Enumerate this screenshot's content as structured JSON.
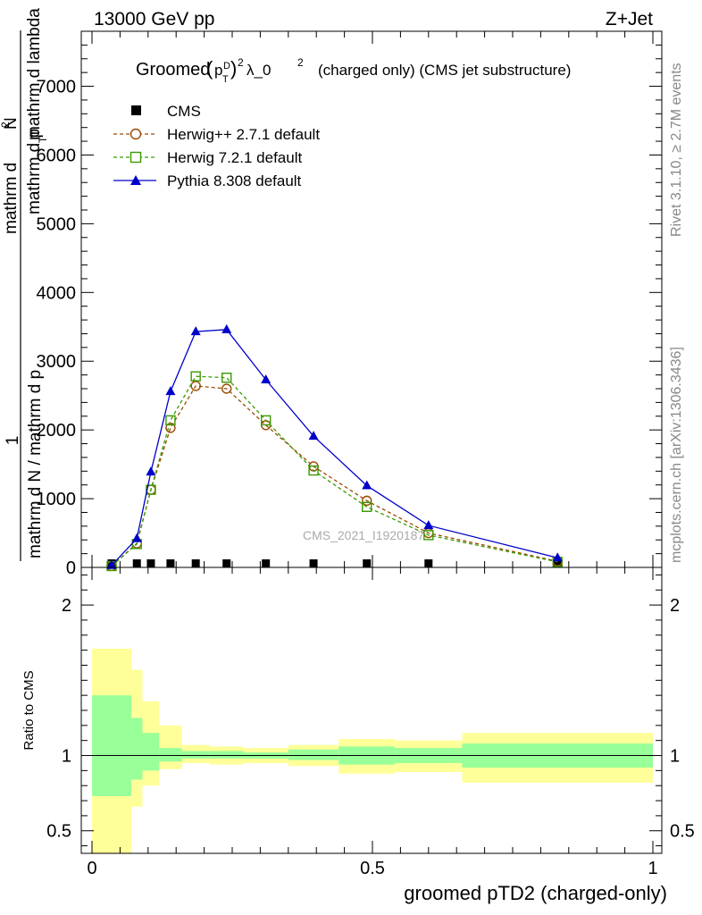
{
  "header": {
    "energy_label": "13000 GeV pp",
    "process_label": "Z+Jet"
  },
  "side_labels": {
    "rivet": "Rivet 3.1.10, ≥ 2.7M events",
    "mcplots": "mcplots.cern.ch [arXiv:1306.3436]"
  },
  "watermark": "CMS_2021_I1920187",
  "chart_data": [
    {
      "type": "line",
      "title": "Groomed (p_T^D)^2 λ_0^2  (charged only) (CMS jet substructure)",
      "title_parts": {
        "prefix": "Groomed",
        "sub_p": "p",
        "sub_T": "T",
        "sup_D": "D",
        "sup_2": "2",
        "lambda": "λ_0",
        "lambda_sup": "2",
        "suffix": "(charged only) (CMS jet substructure)"
      },
      "ylabel_numerator": "mathrm d²N",
      "ylabel_numerator_lines": [
        "mathrm d",
        "N",
        "2"
      ],
      "ylabel_denominator": "mathrm d N / mathrm d p_T mathrm d p_T mathrm d lambda",
      "ylabel_one": "1",
      "ylabel_num_text": "mathrm d",
      "ylabel_num_sup": "2",
      "ylabel_num_N": "N",
      "ylabel_num_line2": "mathrm d p",
      "ylabel_num_line2_sub": "T",
      "ylabel_num_line2_rest": "mathrm d lambda",
      "ylabel_den_a": "mathrm d N / mathrm d p",
      "ylabel_den_sub": "T",
      "xlim": [
        0,
        1
      ],
      "ylim": [
        0,
        7800
      ],
      "yticks": [
        {
          "value": 0,
          "label": "0"
        },
        {
          "value": 1000,
          "label": "1000"
        },
        {
          "value": 2000,
          "label": "2000"
        },
        {
          "value": 3000,
          "label": "3000"
        },
        {
          "value": 4000,
          "label": "4000"
        },
        {
          "value": 5000,
          "label": "5000"
        },
        {
          "value": 6000,
          "label": "6000"
        },
        {
          "value": 7000,
          "label": "7000"
        }
      ],
      "legend_position": "top-left",
      "series": [
        {
          "name": "CMS",
          "color": "#000000",
          "marker": "filled-square",
          "x": [
            0.035,
            0.08,
            0.105,
            0.14,
            0.185,
            0.24,
            0.31,
            0.395,
            0.49,
            0.6,
            0.83
          ],
          "y": [
            0,
            0,
            0,
            0,
            0,
            0,
            0,
            0,
            0,
            0,
            0
          ]
        },
        {
          "name": "Herwig++ 2.7.1 default",
          "color": "#9a4a00",
          "marker": "open-circle",
          "dashed": true,
          "x": [
            0.035,
            0.08,
            0.105,
            0.14,
            0.185,
            0.24,
            0.31,
            0.395,
            0.49,
            0.6,
            0.83
          ],
          "y": [
            20,
            350,
            1130,
            2030,
            2640,
            2600,
            2070,
            1470,
            970,
            500,
            90
          ]
        },
        {
          "name": "Herwig 7.2.1 default",
          "color": "#3a9a00",
          "marker": "open-square",
          "dashed": true,
          "x": [
            0.035,
            0.08,
            0.105,
            0.14,
            0.185,
            0.24,
            0.31,
            0.395,
            0.49,
            0.6,
            0.83
          ],
          "y": [
            20,
            340,
            1130,
            2140,
            2780,
            2760,
            2140,
            1410,
            880,
            470,
            80
          ]
        },
        {
          "name": "Pythia 8.308 default",
          "color": "#0000cc",
          "marker": "filled-triangle",
          "dashed": false,
          "x": [
            0.035,
            0.08,
            0.105,
            0.14,
            0.185,
            0.24,
            0.31,
            0.395,
            0.49,
            0.6,
            0.83
          ],
          "y": [
            30,
            420,
            1390,
            2560,
            3430,
            3460,
            2730,
            1910,
            1190,
            610,
            140
          ]
        }
      ]
    },
    {
      "type": "area",
      "ylabel": "Ratio to CMS",
      "xlabel": "groomed pTD2 (charged-only)",
      "xlim": [
        0,
        1
      ],
      "ylim": [
        0.35,
        2.25
      ],
      "xticks": [
        {
          "value": 0,
          "label": "0"
        },
        {
          "value": 0.5,
          "label": "0.5"
        },
        {
          "value": 1,
          "label": "1"
        }
      ],
      "yticks": [
        {
          "value": 0.5,
          "label": "0.5"
        },
        {
          "value": 1,
          "label": "1"
        },
        {
          "value": 2,
          "label": "2"
        }
      ],
      "bands": {
        "bin_edges": [
          0,
          0.07,
          0.09,
          0.12,
          0.16,
          0.21,
          0.27,
          0.35,
          0.44,
          0.54,
          0.66,
          1.0
        ],
        "outer_color": "#ffff99",
        "inner_color": "#99ff99",
        "outer_low": [
          0.35,
          0.66,
          0.8,
          0.91,
          0.95,
          0.94,
          0.95,
          0.93,
          0.88,
          0.89,
          0.82
        ],
        "outer_high": [
          1.71,
          1.57,
          1.36,
          1.2,
          1.07,
          1.06,
          1.05,
          1.07,
          1.11,
          1.1,
          1.15
        ],
        "inner_low": [
          0.73,
          0.84,
          0.9,
          0.96,
          0.98,
          0.98,
          0.98,
          0.97,
          0.94,
          0.95,
          0.92
        ],
        "inner_high": [
          1.4,
          1.25,
          1.15,
          1.05,
          1.03,
          1.03,
          1.02,
          1.04,
          1.06,
          1.05,
          1.08
        ]
      },
      "reference_line": 1
    }
  ]
}
